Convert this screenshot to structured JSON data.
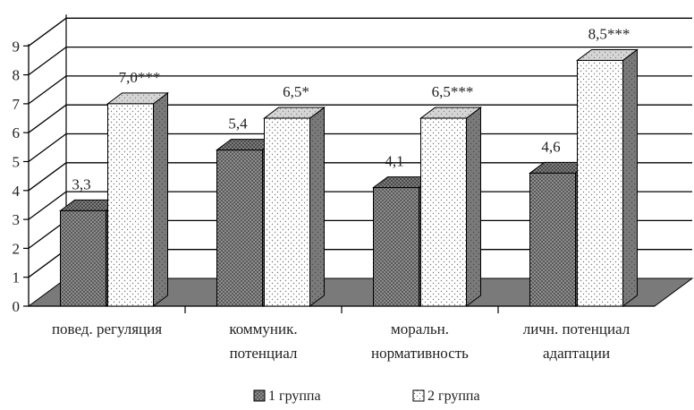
{
  "chart_data": {
    "type": "bar",
    "three_d": true,
    "title": "",
    "xlabel": "",
    "ylabel": "",
    "ylim": [
      0,
      9
    ],
    "yticks": [
      "0",
      "1",
      "2",
      "3",
      "4",
      "5",
      "6",
      "7",
      "8",
      "9"
    ],
    "grid": true,
    "legend_position": "bottom",
    "categories": [
      [
        "повед. регуляция"
      ],
      [
        "коммуник.",
        "потенциал"
      ],
      [
        "моральн.",
        "нормативность"
      ],
      [
        "личн. потенциал",
        "адаптации"
      ]
    ],
    "series": [
      {
        "name": "1 группа",
        "pattern": "crosshatch",
        "color": "#8a8a8a",
        "values": [
          3.3,
          5.4,
          4.1,
          4.6
        ],
        "labels": [
          "3,3",
          "5,4",
          "4,1",
          "4,6"
        ]
      },
      {
        "name": "2 группа",
        "pattern": "dots",
        "color": "#ffffff",
        "values": [
          7.0,
          6.5,
          6.5,
          8.5
        ],
        "labels": [
          "7,0***",
          "6,5*",
          "6,5***",
          "8,5***"
        ]
      }
    ],
    "floor_color": "#7a7a7a"
  }
}
